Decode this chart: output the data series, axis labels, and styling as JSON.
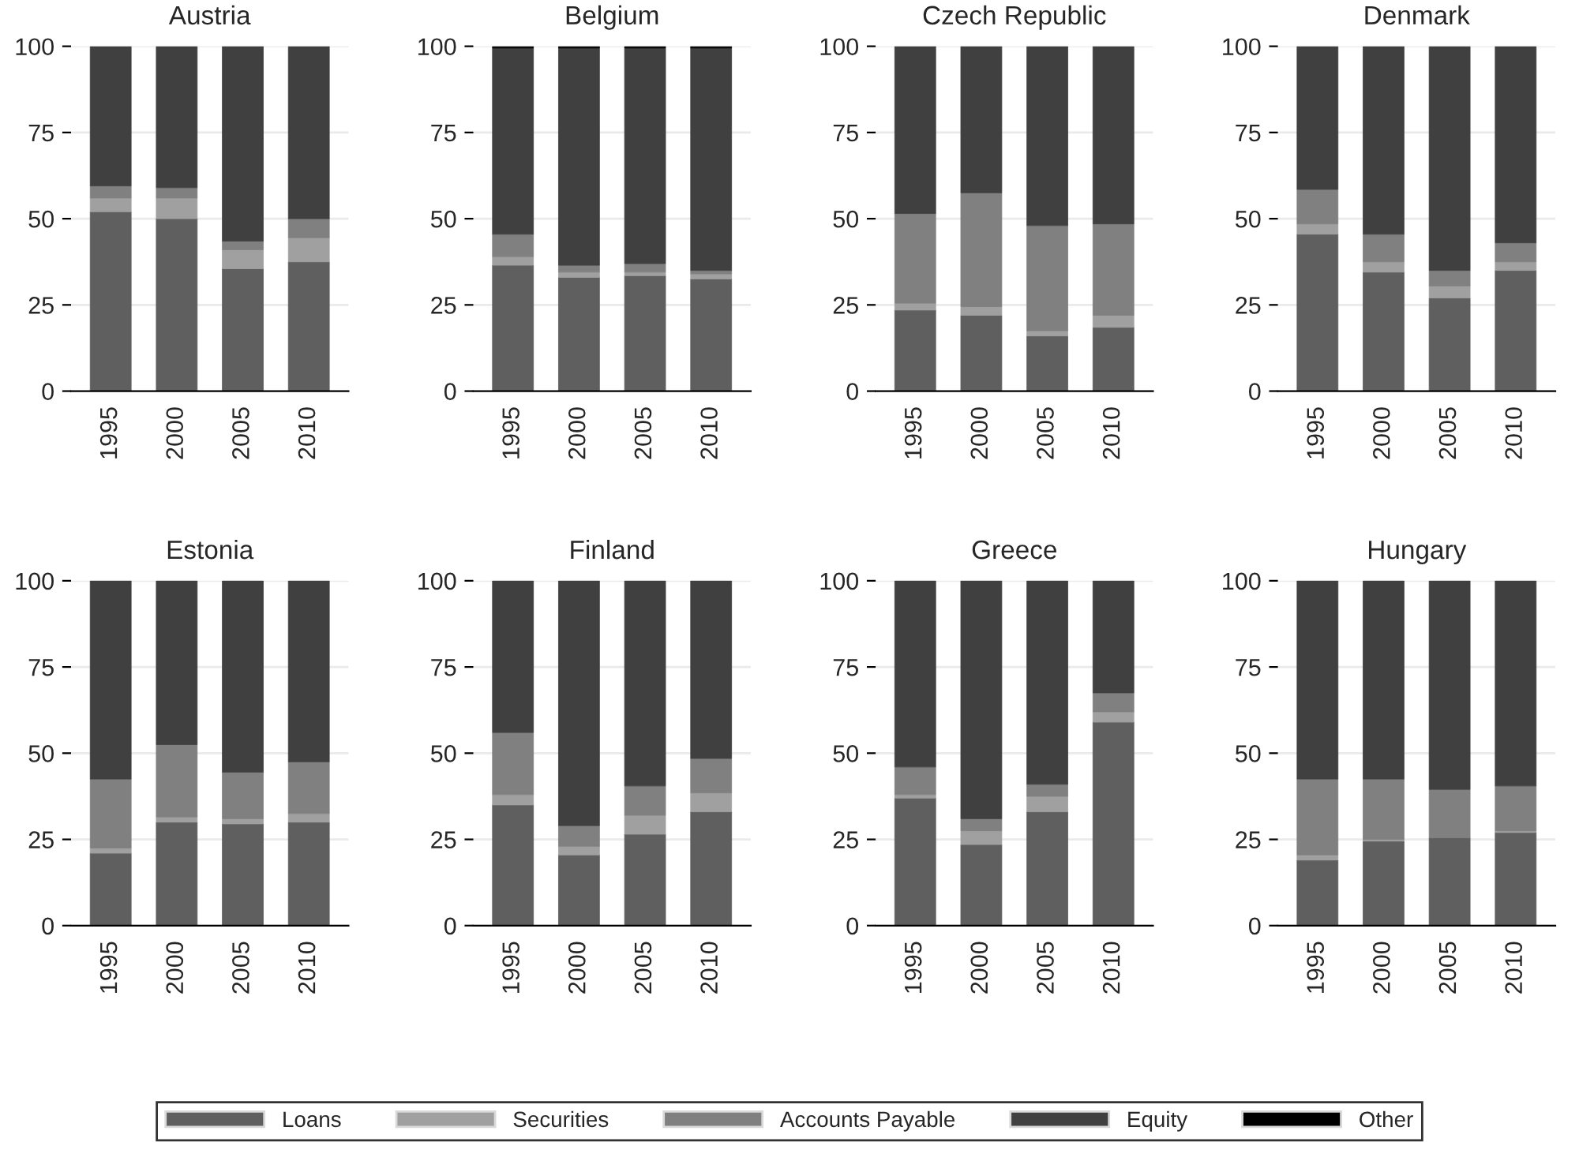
{
  "chart_data": [
    {
      "type": "bar",
      "title": "Austria",
      "stacked": true,
      "grid": "y",
      "legend": "bottom",
      "ylim": [
        0,
        100
      ],
      "yticks": [
        0,
        25,
        50,
        75,
        100
      ],
      "categories": [
        "1995",
        "2000",
        "2005",
        "2010"
      ],
      "series": [
        {
          "name": "Loans",
          "color": "#5f5f5f",
          "values": [
            52,
            50,
            35.5,
            37.5
          ]
        },
        {
          "name": "Securities",
          "color": "#a0a0a0",
          "values": [
            4,
            6,
            5.5,
            7
          ]
        },
        {
          "name": "Accounts Payable",
          "color": "#808080",
          "values": [
            3.5,
            3,
            2.5,
            5.5
          ]
        },
        {
          "name": "Equity",
          "color": "#404040",
          "values": [
            40.5,
            41,
            56.5,
            50
          ]
        }
      ]
    },
    {
      "type": "bar",
      "title": "Belgium",
      "stacked": true,
      "grid": "y",
      "legend": "bottom",
      "ylim": [
        0,
        100
      ],
      "yticks": [
        0,
        25,
        50,
        75,
        100
      ],
      "categories": [
        "1995",
        "2000",
        "2005",
        "2010"
      ],
      "series": [
        {
          "name": "Loans",
          "color": "#5f5f5f",
          "values": [
            36.5,
            33,
            33.5,
            32.5
          ]
        },
        {
          "name": "Securities",
          "color": "#a0a0a0",
          "values": [
            2.5,
            1.5,
            1,
            1.5
          ]
        },
        {
          "name": "Accounts Payable",
          "color": "#808080",
          "values": [
            6.5,
            2,
            2.5,
            1
          ]
        },
        {
          "name": "Equity",
          "color": "#404040",
          "values": [
            54,
            63,
            62.5,
            64.5
          ]
        },
        {
          "name": "Other",
          "color": "#000000",
          "values": [
            0.5,
            0.5,
            0.5,
            0.5
          ]
        }
      ]
    },
    {
      "type": "bar",
      "title": "Czech Republic",
      "stacked": true,
      "grid": "y",
      "legend": "bottom",
      "ylim": [
        0,
        100
      ],
      "yticks": [
        0,
        25,
        50,
        75,
        100
      ],
      "categories": [
        "1995",
        "2000",
        "2005",
        "2010"
      ],
      "series": [
        {
          "name": "Loans",
          "color": "#5f5f5f",
          "values": [
            23.5,
            22,
            16,
            18.5
          ]
        },
        {
          "name": "Securities",
          "color": "#a0a0a0",
          "values": [
            2,
            2.5,
            1.5,
            3.5
          ]
        },
        {
          "name": "Accounts Payable",
          "color": "#808080",
          "values": [
            26,
            33,
            30.5,
            26.5
          ]
        },
        {
          "name": "Equity",
          "color": "#404040",
          "values": [
            48.5,
            42.5,
            52,
            51.5
          ]
        }
      ]
    },
    {
      "type": "bar",
      "title": "Denmark",
      "stacked": true,
      "grid": "y",
      "legend": "bottom",
      "ylim": [
        0,
        100
      ],
      "yticks": [
        0,
        25,
        50,
        75,
        100
      ],
      "categories": [
        "1995",
        "2000",
        "2005",
        "2010"
      ],
      "series": [
        {
          "name": "Loans",
          "color": "#5f5f5f",
          "values": [
            45.5,
            34.5,
            27,
            35
          ]
        },
        {
          "name": "Securities",
          "color": "#a0a0a0",
          "values": [
            3,
            3,
            3.5,
            2.5
          ]
        },
        {
          "name": "Accounts Payable",
          "color": "#808080",
          "values": [
            10,
            8,
            4.5,
            5.5
          ]
        },
        {
          "name": "Equity",
          "color": "#404040",
          "values": [
            41.5,
            54.5,
            65,
            57
          ]
        }
      ]
    },
    {
      "type": "bar",
      "title": "Estonia",
      "stacked": true,
      "grid": "y",
      "legend": "bottom",
      "ylim": [
        0,
        100
      ],
      "yticks": [
        0,
        25,
        50,
        75,
        100
      ],
      "categories": [
        "1995",
        "2000",
        "2005",
        "2010"
      ],
      "series": [
        {
          "name": "Loans",
          "color": "#5f5f5f",
          "values": [
            21,
            30,
            29.5,
            30
          ]
        },
        {
          "name": "Securities",
          "color": "#a0a0a0",
          "values": [
            1.5,
            1.5,
            1.5,
            2.5
          ]
        },
        {
          "name": "Accounts Payable",
          "color": "#808080",
          "values": [
            20,
            21,
            13.5,
            15
          ]
        },
        {
          "name": "Equity",
          "color": "#404040",
          "values": [
            57.5,
            47.5,
            55.5,
            52.5
          ]
        }
      ]
    },
    {
      "type": "bar",
      "title": "Finland",
      "stacked": true,
      "grid": "y",
      "legend": "bottom",
      "ylim": [
        0,
        100
      ],
      "yticks": [
        0,
        25,
        50,
        75,
        100
      ],
      "categories": [
        "1995",
        "2000",
        "2005",
        "2010"
      ],
      "series": [
        {
          "name": "Loans",
          "color": "#5f5f5f",
          "values": [
            35,
            20.5,
            26.5,
            33
          ]
        },
        {
          "name": "Securities",
          "color": "#a0a0a0",
          "values": [
            3,
            2.5,
            5.5,
            5.5
          ]
        },
        {
          "name": "Accounts Payable",
          "color": "#808080",
          "values": [
            18,
            6,
            8.5,
            10
          ]
        },
        {
          "name": "Equity",
          "color": "#404040",
          "values": [
            44,
            71,
            59.5,
            51.5
          ]
        }
      ]
    },
    {
      "type": "bar",
      "title": "Greece",
      "stacked": true,
      "grid": "y",
      "legend": "bottom",
      "ylim": [
        0,
        100
      ],
      "yticks": [
        0,
        25,
        50,
        75,
        100
      ],
      "categories": [
        "1995",
        "2000",
        "2005",
        "2010"
      ],
      "series": [
        {
          "name": "Loans",
          "color": "#5f5f5f",
          "values": [
            37,
            23.5,
            33,
            59
          ]
        },
        {
          "name": "Securities",
          "color": "#a0a0a0",
          "values": [
            1,
            4,
            4.5,
            3
          ]
        },
        {
          "name": "Accounts Payable",
          "color": "#808080",
          "values": [
            8,
            3.5,
            3.5,
            5.5
          ]
        },
        {
          "name": "Equity",
          "color": "#404040",
          "values": [
            54,
            69,
            59,
            32.5
          ]
        }
      ]
    },
    {
      "type": "bar",
      "title": "Hungary",
      "stacked": true,
      "grid": "y",
      "ylim": [
        0,
        100
      ],
      "yticks": [
        0,
        25,
        50,
        75,
        100
      ],
      "legend": "bottom",
      "categories": [
        "1995",
        "2000",
        "2005",
        "2010"
      ],
      "series": [
        {
          "name": "Loans",
          "color": "#5f5f5f",
          "values": [
            19,
            24.5,
            25.5,
            27
          ]
        },
        {
          "name": "Securities",
          "color": "#a0a0a0",
          "values": [
            1.5,
            0.5,
            null,
            0.5
          ]
        },
        {
          "name": "Accounts Payable",
          "color": "#808080",
          "values": [
            22,
            17.5,
            14,
            13
          ]
        },
        {
          "name": "Equity",
          "color": "#404040",
          "values": [
            57.5,
            57.5,
            60.5,
            59.5
          ]
        }
      ]
    }
  ]
}
